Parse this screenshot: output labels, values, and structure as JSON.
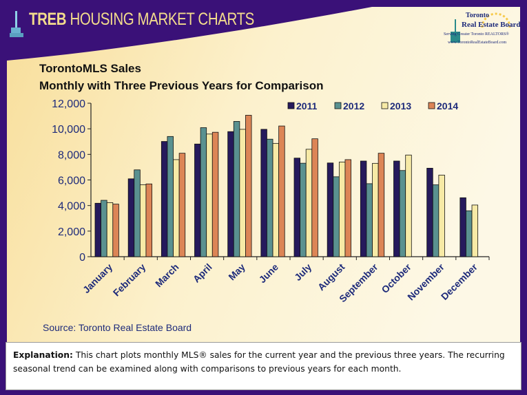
{
  "header": {
    "brand": "TREB",
    "title": "HOUSING MARKET CHARTS"
  },
  "logo": {
    "line1": "Toronto",
    "line2": "Real Estate Board",
    "line3": "Serving Greater Toronto REALTORS®",
    "line4": "www.TorontoRealEstateBoard.com"
  },
  "chart_data": {
    "type": "bar",
    "title": "TorontoMLS Sales",
    "subtitle": "Monthly with Three Previous Years for Comparison",
    "categories": [
      "January",
      "February",
      "March",
      "April",
      "May",
      "June",
      "July",
      "August",
      "September",
      "October",
      "November",
      "December"
    ],
    "series": [
      {
        "name": "2011",
        "color": "#261a5c",
        "values": [
          4180,
          6090,
          9010,
          8810,
          9780,
          9960,
          7710,
          7330,
          7480,
          7480,
          6920,
          4610
        ]
      },
      {
        "name": "2012",
        "color": "#5a9190",
        "values": [
          4410,
          6790,
          9400,
          10090,
          10580,
          9190,
          7310,
          6250,
          5710,
          6740,
          5620,
          3590
        ]
      },
      {
        "name": "2013",
        "color": "#f7eaa6",
        "values": [
          4230,
          5620,
          7590,
          9590,
          9960,
          8860,
          8400,
          7400,
          7300,
          7950,
          6380,
          4040
        ]
      },
      {
        "name": "2014",
        "color": "#dc8556",
        "values": [
          4110,
          5690,
          8090,
          9730,
          11060,
          10220,
          9220,
          7590,
          8090,
          null,
          null,
          null
        ]
      }
    ],
    "ylim": [
      0,
      12000
    ],
    "yticks": [
      "0",
      "2,000",
      "4,000",
      "6,000",
      "8,000",
      "10,000",
      "12,000"
    ],
    "legend": "top-right",
    "grid": false,
    "source": "Source: Toronto Real Estate Board"
  },
  "explanation": {
    "label": "Explanation:",
    "text": " This chart plots monthly MLS® sales for the current year and the previous three years. The recurring seasonal trend can be examined along with comparisons to previous years for each month."
  }
}
